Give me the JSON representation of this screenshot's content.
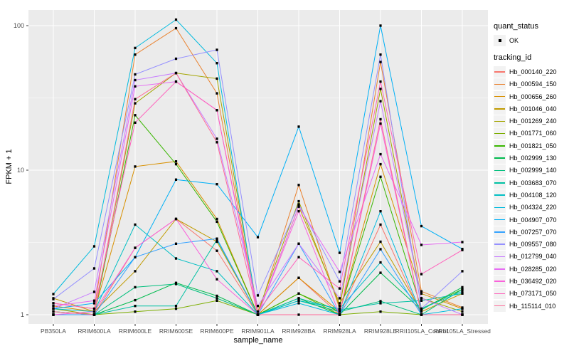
{
  "chart_data": {
    "type": "line",
    "title": "",
    "xlabel": "sample_name",
    "ylabel": "FPKM + 1",
    "y_scale": "log10",
    "ylim": [
      1,
      120
    ],
    "y_ticks": [
      "1",
      "10",
      "100"
    ],
    "y_tick_values": [
      1,
      10,
      100
    ],
    "y_minor_values": [
      3.1623,
      31.6228
    ],
    "grid": "white-on-gray-panel",
    "legend_position": "right",
    "x_categories": [
      "PB350LA",
      "RRIM600LA",
      "RRIM600LE",
      "RRIM600SE",
      "RRIM600PE",
      "RRIM901LA",
      "RRIM928BA",
      "RRIM928LA",
      "RRIM928LE",
      "RRII105LA_Control",
      "RRII105LA_Stressed"
    ],
    "legend": {
      "quant_status_title": "quant_status",
      "quant_status_items": [
        {
          "label": "OK",
          "marker": "black-point"
        }
      ],
      "tracking_id_title": "tracking_id"
    },
    "series": [
      {
        "name": "Hb_000140_220",
        "color": "#F8766D",
        "values": [
          1.0,
          1.0,
          2.9,
          4.6,
          2.77,
          1.0,
          1.8,
          1.0,
          4.2,
          1.0,
          1.0
        ]
      },
      {
        "name": "Hb_000594_150",
        "color": "#EA8331",
        "values": [
          1.2,
          1.1,
          63.0,
          96.0,
          34.0,
          1.0,
          7.9,
          1.1,
          56.0,
          1.45,
          1.12
        ]
      },
      {
        "name": "Hb_000656_260",
        "color": "#D89000",
        "values": [
          1.15,
          1.05,
          10.6,
          11.5,
          4.6,
          1.0,
          1.8,
          1.05,
          11.0,
          1.4,
          1.1
        ]
      },
      {
        "name": "Hb_001046_040",
        "color": "#C09B00",
        "values": [
          1.3,
          1.05,
          2.0,
          4.6,
          3.2,
          1.0,
          5.6,
          1.2,
          3.2,
          1.05,
          1.4
        ]
      },
      {
        "name": "Hb_001269_240",
        "color": "#A3A500",
        "values": [
          1.1,
          1.0,
          29.0,
          47.0,
          43.0,
          1.05,
          6.1,
          1.15,
          36.5,
          1.3,
          1.05
        ]
      },
      {
        "name": "Hb_001771_060",
        "color": "#7CAE00",
        "values": [
          1.0,
          1.0,
          1.05,
          1.1,
          1.25,
          1.0,
          1.4,
          1.0,
          1.05,
          1.0,
          1.0
        ]
      },
      {
        "name": "Hb_001821_050",
        "color": "#39B600",
        "values": [
          1.05,
          1.0,
          24.0,
          11.0,
          4.4,
          1.0,
          1.4,
          1.05,
          9.0,
          1.1,
          1.5
        ]
      },
      {
        "name": "Hb_002999_130",
        "color": "#00BB4E",
        "values": [
          1.0,
          1.0,
          1.26,
          1.66,
          1.35,
          1.0,
          1.3,
          1.0,
          1.95,
          1.08,
          1.55
        ]
      },
      {
        "name": "Hb_002999_140",
        "color": "#00BF7D",
        "values": [
          1.05,
          1.0,
          1.55,
          1.63,
          1.3,
          1.0,
          1.25,
          1.05,
          1.24,
          1.0,
          1.5
        ]
      },
      {
        "name": "Hb_003683_070",
        "color": "#00C1A3",
        "values": [
          1.0,
          1.0,
          1.15,
          1.15,
          3.3,
          1.0,
          1.3,
          1.08,
          1.2,
          1.25,
          1.4
        ]
      },
      {
        "name": "Hb_004108_120",
        "color": "#00BFC4",
        "values": [
          1.1,
          1.05,
          4.2,
          2.45,
          2.0,
          1.0,
          1.25,
          1.1,
          2.3,
          1.1,
          1.45
        ]
      },
      {
        "name": "Hb_004324_220",
        "color": "#00BADE",
        "values": [
          1.39,
          2.97,
          70.0,
          110.0,
          55.0,
          1.0,
          1.2,
          1.0,
          5.2,
          1.0,
          1.1
        ]
      },
      {
        "name": "Hb_004907_070",
        "color": "#00B0F6",
        "values": [
          1.1,
          1.2,
          2.5,
          8.6,
          8.0,
          3.44,
          20.0,
          2.68,
          100.0,
          4.1,
          2.85
        ]
      },
      {
        "name": "Hb_007257_070",
        "color": "#35A2FF",
        "values": [
          1.0,
          1.0,
          2.5,
          3.1,
          3.36,
          1.0,
          3.1,
          1.0,
          2.84,
          1.0,
          1.0
        ]
      },
      {
        "name": "Hb_009557_080",
        "color": "#9590FF",
        "values": [
          1.28,
          2.09,
          46.0,
          59.0,
          68.0,
          1.36,
          5.8,
          1.7,
          63.0,
          1.1,
          2.0
        ]
      },
      {
        "name": "Hb_012799_040",
        "color": "#C77CFF",
        "values": [
          1.1,
          1.44,
          42.0,
          47.0,
          16.5,
          1.15,
          3.1,
          1.3,
          30.0,
          1.3,
          1.0
        ]
      },
      {
        "name": "Hb_028285_020",
        "color": "#E76BF3",
        "values": [
          1.15,
          1.25,
          38.0,
          41.0,
          26.0,
          1.0,
          5.6,
          1.98,
          12.9,
          3.04,
          3.18
        ]
      },
      {
        "name": "Hb_036492_020",
        "color": "#FA62DB",
        "values": [
          1.0,
          1.05,
          2.9,
          4.6,
          1.76,
          1.0,
          5.2,
          1.0,
          21.0,
          1.0,
          1.0
        ]
      },
      {
        "name": "Hb_073171_050",
        "color": "#FF62BC",
        "values": [
          1.2,
          1.1,
          21.3,
          41.0,
          26.0,
          1.05,
          2.5,
          1.52,
          41.0,
          1.91,
          2.8
        ]
      },
      {
        "name": "Hb_115114_010",
        "color": "#FF6A98",
        "values": [
          1.05,
          1.0,
          31.0,
          47.0,
          15.6,
          1.0,
          1.0,
          1.0,
          22.5,
          1.0,
          1.0
        ]
      }
    ],
    "style": {
      "panel_fill": "#EBEBEB",
      "grid_color": "#FFFFFF",
      "point_color": "#000000",
      "axis_text_color": "#4D4D4D",
      "key_fill": "#F2F2F2"
    }
  }
}
